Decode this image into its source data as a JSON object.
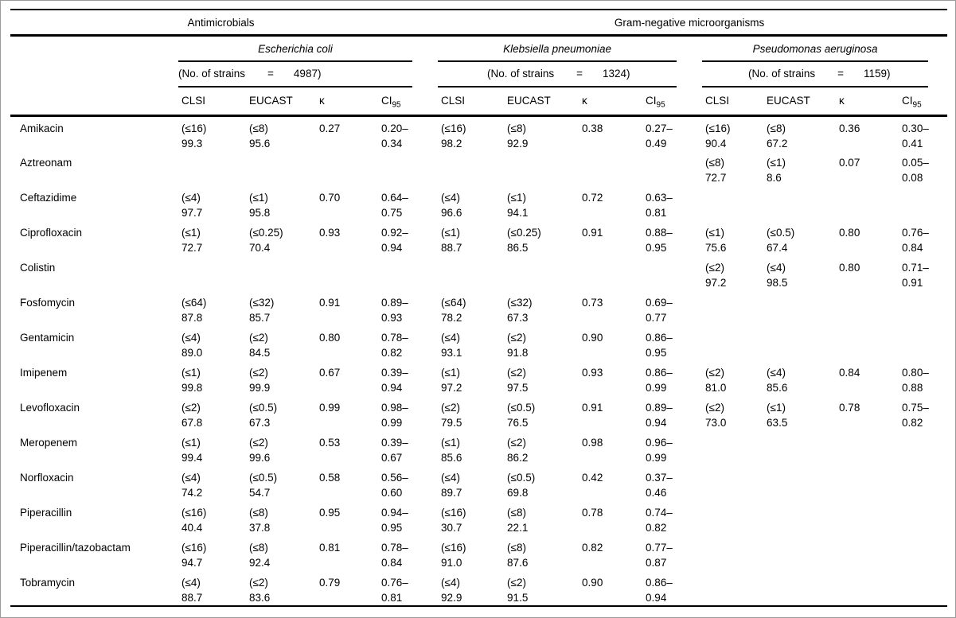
{
  "table": {
    "top_header": {
      "antimicrobials": "Antimicrobials",
      "group": "Gram-negative microorganisms"
    },
    "col_labels": {
      "clsi": "CLSI",
      "eucast": "EUCAST",
      "kappa": "κ",
      "ci_base": "CI",
      "ci_sub": "95"
    },
    "organisms": [
      {
        "name": "Escherichia coli",
        "strains_label": "(No. of strains",
        "equals": "=",
        "strains_count": "4987)"
      },
      {
        "name": "Klebsiella pneumoniae",
        "strains_label": "(No. of strains",
        "equals": "=",
        "strains_count": "1324)"
      },
      {
        "name": "Pseudomonas aeruginosa",
        "strains_label": "(No. of strains",
        "equals": "=",
        "strains_count": "1159)"
      }
    ],
    "rows": [
      {
        "drug": "Amikacin",
        "cells": [
          {
            "clsi_bp": "(≤16)",
            "clsi_pct": "99.3",
            "eucast_bp": "(≤8)",
            "eucast_pct": "95.6",
            "kappa": "0.27",
            "ci": [
              "0.20–",
              "0.34"
            ]
          },
          {
            "clsi_bp": "(≤16)",
            "clsi_pct": "98.2",
            "eucast_bp": "(≤8)",
            "eucast_pct": "92.9",
            "kappa": "0.38",
            "ci": [
              "0.27–",
              "0.49"
            ]
          },
          {
            "clsi_bp": "(≤16)",
            "clsi_pct": "90.4",
            "eucast_bp": "(≤8)",
            "eucast_pct": "67.2",
            "kappa": "0.36",
            "ci": [
              "0.30–",
              "0.41"
            ]
          }
        ]
      },
      {
        "drug": "Aztreonam",
        "cells": [
          null,
          null,
          {
            "clsi_bp": "(≤8)",
            "clsi_pct": "72.7",
            "eucast_bp": "(≤1)",
            "eucast_pct": "8.6",
            "kappa": "0.07",
            "ci": [
              "0.05–",
              "0.08"
            ]
          }
        ]
      },
      {
        "drug": "Ceftazidime",
        "cells": [
          {
            "clsi_bp": "(≤4)",
            "clsi_pct": "97.7",
            "eucast_bp": "(≤1)",
            "eucast_pct": "95.8",
            "kappa": "0.70",
            "ci": [
              "0.64–",
              "0.75"
            ]
          },
          {
            "clsi_bp": "(≤4)",
            "clsi_pct": "96.6",
            "eucast_bp": "(≤1)",
            "eucast_pct": "94.1",
            "kappa": "0.72",
            "ci": [
              "0.63–",
              "0.81"
            ]
          },
          null
        ]
      },
      {
        "drug": "Ciprofloxacin",
        "cells": [
          {
            "clsi_bp": "(≤1)",
            "clsi_pct": "72.7",
            "eucast_bp": "(≤0.25)",
            "eucast_pct": "70.4",
            "kappa": "0.93",
            "ci": [
              "0.92–",
              "0.94"
            ]
          },
          {
            "clsi_bp": "(≤1)",
            "clsi_pct": "88.7",
            "eucast_bp": "(≤0.25)",
            "eucast_pct": "86.5",
            "kappa": "0.91",
            "ci": [
              "0.88–",
              "0.95"
            ]
          },
          {
            "clsi_bp": "(≤1)",
            "clsi_pct": "75.6",
            "eucast_bp": "(≤0.5)",
            "eucast_pct": "67.4",
            "kappa": "0.80",
            "ci": [
              "0.76–",
              "0.84"
            ]
          }
        ]
      },
      {
        "drug": "Colistin",
        "cells": [
          null,
          null,
          {
            "clsi_bp": "(≤2)",
            "clsi_pct": "97.2",
            "eucast_bp": "(≤4)",
            "eucast_pct": "98.5",
            "kappa": "0.80",
            "ci": [
              "0.71–",
              "0.91"
            ]
          }
        ]
      },
      {
        "drug": "Fosfomycin",
        "cells": [
          {
            "clsi_bp": "(≤64)",
            "clsi_pct": "87.8",
            "eucast_bp": "(≤32)",
            "eucast_pct": "85.7",
            "kappa": "0.91",
            "ci": [
              "0.89–",
              "0.93"
            ]
          },
          {
            "clsi_bp": "(≤64)",
            "clsi_pct": "78.2",
            "eucast_bp": "(≤32)",
            "eucast_pct": "67.3",
            "kappa": "0.73",
            "ci": [
              "0.69–",
              "0.77"
            ]
          },
          null
        ]
      },
      {
        "drug": "Gentamicin",
        "cells": [
          {
            "clsi_bp": "(≤4)",
            "clsi_pct": "89.0",
            "eucast_bp": "(≤2)",
            "eucast_pct": "84.5",
            "kappa": "0.80",
            "ci": [
              "0.78–",
              "0.82"
            ]
          },
          {
            "clsi_bp": "(≤4)",
            "clsi_pct": "93.1",
            "eucast_bp": "(≤2)",
            "eucast_pct": "91.8",
            "kappa": "0.90",
            "ci": [
              "0.86–",
              "0.95"
            ]
          },
          null
        ]
      },
      {
        "drug": "Imipenem",
        "cells": [
          {
            "clsi_bp": "(≤1)",
            "clsi_pct": "99.8",
            "eucast_bp": "(≤2)",
            "eucast_pct": "99.9",
            "kappa": "0.67",
            "ci": [
              "0.39–",
              "0.94"
            ]
          },
          {
            "clsi_bp": "(≤1)",
            "clsi_pct": "97.2",
            "eucast_bp": "(≤2)",
            "eucast_pct": "97.5",
            "kappa": "0.93",
            "ci": [
              "0.86–",
              "0.99"
            ]
          },
          {
            "clsi_bp": "(≤2)",
            "clsi_pct": "81.0",
            "eucast_bp": "(≤4)",
            "eucast_pct": "85.6",
            "kappa": "0.84",
            "ci": [
              "0.80–",
              "0.88"
            ]
          }
        ]
      },
      {
        "drug": "Levofloxacin",
        "cells": [
          {
            "clsi_bp": "(≤2)",
            "clsi_pct": "67.8",
            "eucast_bp": "(≤0.5)",
            "eucast_pct": "67.3",
            "kappa": "0.99",
            "ci": [
              "0.98–",
              "0.99"
            ]
          },
          {
            "clsi_bp": "(≤2)",
            "clsi_pct": "79.5",
            "eucast_bp": "(≤0.5)",
            "eucast_pct": "76.5",
            "kappa": "0.91",
            "ci": [
              "0.89–",
              "0.94"
            ]
          },
          {
            "clsi_bp": "(≤2)",
            "clsi_pct": "73.0",
            "eucast_bp": "(≤1)",
            "eucast_pct": "63.5",
            "kappa": "0.78",
            "ci": [
              "0.75–",
              "0.82"
            ]
          }
        ]
      },
      {
        "drug": "Meropenem",
        "cells": [
          {
            "clsi_bp": "(≤1)",
            "clsi_pct": "99.4",
            "eucast_bp": "(≤2)",
            "eucast_pct": "99.6",
            "kappa": "0.53",
            "ci": [
              "0.39–",
              "0.67"
            ]
          },
          {
            "clsi_bp": "(≤1)",
            "clsi_pct": "85.6",
            "eucast_bp": "(≤2)",
            "eucast_pct": "86.2",
            "kappa": "0.98",
            "ci": [
              "0.96–",
              "0.99"
            ]
          },
          null
        ]
      },
      {
        "drug": "Norfloxacin",
        "cells": [
          {
            "clsi_bp": "(≤4)",
            "clsi_pct": "74.2",
            "eucast_bp": "(≤0.5)",
            "eucast_pct": "54.7",
            "kappa": "0.58",
            "ci": [
              "0.56–",
              "0.60"
            ]
          },
          {
            "clsi_bp": "(≤4)",
            "clsi_pct": "89.7",
            "eucast_bp": "(≤0.5)",
            "eucast_pct": "69.8",
            "kappa": "0.42",
            "ci": [
              "0.37–",
              "0.46"
            ]
          },
          null
        ]
      },
      {
        "drug": "Piperacillin",
        "cells": [
          {
            "clsi_bp": "(≤16)",
            "clsi_pct": "40.4",
            "eucast_bp": "(≤8)",
            "eucast_pct": "37.8",
            "kappa": "0.95",
            "ci": [
              "0.94–",
              "0.95"
            ]
          },
          {
            "clsi_bp": "(≤16)",
            "clsi_pct": "30.7",
            "eucast_bp": "(≤8)",
            "eucast_pct": "22.1",
            "kappa": "0.78",
            "ci": [
              "0.74–",
              "0.82"
            ]
          },
          null
        ]
      },
      {
        "drug": "Piperacillin/tazobactam",
        "cells": [
          {
            "clsi_bp": "(≤16)",
            "clsi_pct": "94.7",
            "eucast_bp": "(≤8)",
            "eucast_pct": "92.4",
            "kappa": "0.81",
            "ci": [
              "0.78–",
              "0.84"
            ]
          },
          {
            "clsi_bp": "(≤16)",
            "clsi_pct": "91.0",
            "eucast_bp": "(≤8)",
            "eucast_pct": "87.6",
            "kappa": "0.82",
            "ci": [
              "0.77–",
              "0.87"
            ]
          },
          null
        ]
      },
      {
        "drug": "Tobramycin",
        "cells": [
          {
            "clsi_bp": "(≤4)",
            "clsi_pct": "88.7",
            "eucast_bp": "(≤2)",
            "eucast_pct": "83.6",
            "kappa": "0.79",
            "ci": [
              "0.76–",
              "0.81"
            ]
          },
          {
            "clsi_bp": "(≤4)",
            "clsi_pct": "92.9",
            "eucast_bp": "(≤2)",
            "eucast_pct": "91.5",
            "kappa": "0.90",
            "ci": [
              "0.86–",
              "0.94"
            ]
          },
          null
        ]
      }
    ]
  }
}
